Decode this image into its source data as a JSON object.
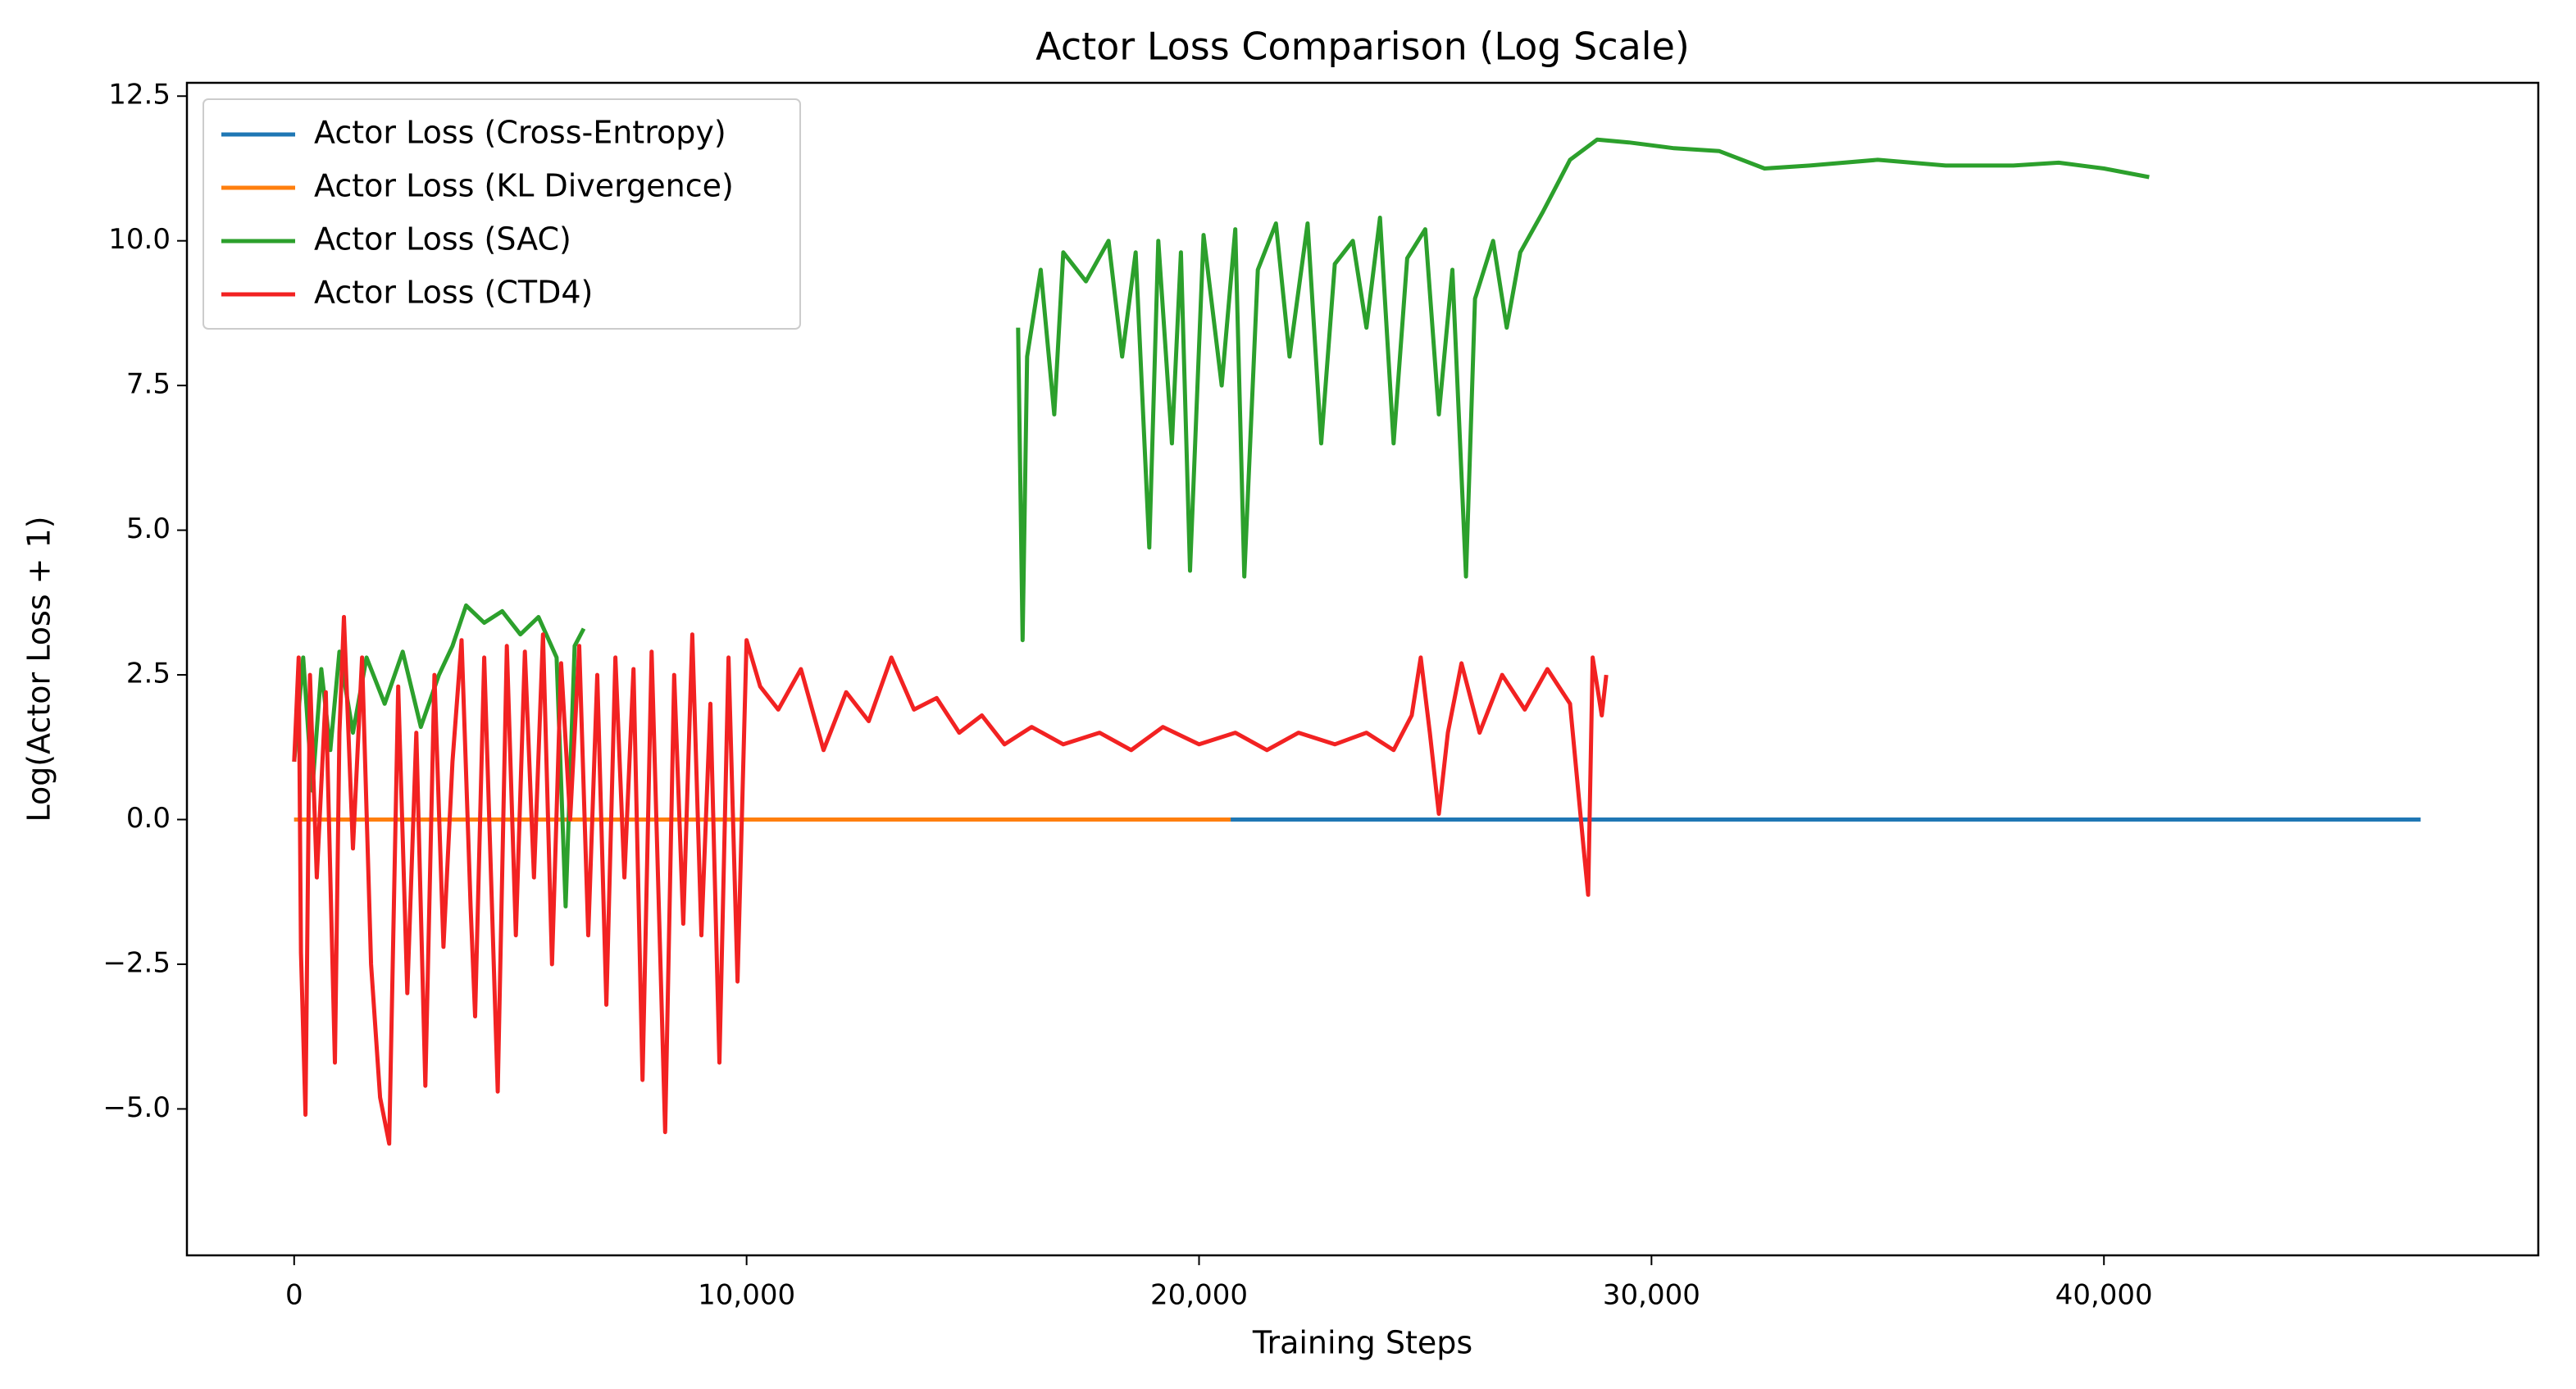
{
  "chart_data": {
    "type": "line",
    "title": "Actor Loss Comparison (Log Scale)",
    "x_label": "Training Steps",
    "y_label": "Log(Actor Loss + 1)",
    "xlim": [
      -2370,
      49600
    ],
    "ylim": [
      -7.53,
      12.73
    ],
    "xticks": [
      0,
      {
        "value": 10000,
        "label": "10,000"
      },
      {
        "value": 20000,
        "label": "20,000"
      },
      {
        "value": 30000,
        "label": "30,000"
      },
      {
        "value": 40000,
        "label": "40,000"
      }
    ],
    "yticks": [
      {
        "value": -5,
        "label": "−5.0"
      },
      {
        "value": -2.5,
        "label": "−2.5"
      },
      {
        "value": 0,
        "label": "0.0"
      },
      2.5,
      {
        "value": 5,
        "label": "5.0"
      },
      7.5,
      {
        "value": 10,
        "label": "10.0"
      },
      12.5
    ],
    "grid": false,
    "legend": "upper left",
    "series": [
      {
        "name": "Actor Loss (Cross-Entropy)",
        "color": "#1f77b4",
        "x": [
          0,
          47000
        ],
        "values": [
          0,
          0
        ]
      },
      {
        "name": "Actor Loss (KL Divergence)",
        "color": "#ff7f0e",
        "x": [
          0,
          20700
        ],
        "values": [
          0,
          0
        ]
      },
      {
        "name": "Actor Loss (SAC)",
        "color": "#2ca02c",
        "x": [
          0,
          200,
          400,
          600,
          800,
          1000,
          1300,
          1600,
          2000,
          2400,
          2800,
          3200,
          3500,
          3800,
          4200,
          4600,
          5000,
          5400,
          5800,
          6000,
          6200,
          6400,
          11000,
          16000,
          16100,
          16200,
          16500,
          16800,
          17000,
          17500,
          18000,
          18300,
          18600,
          18900,
          19100,
          19400,
          19600,
          19800,
          20100,
          20500,
          20800,
          21000,
          21300,
          21700,
          22000,
          22400,
          22700,
          23000,
          23400,
          23700,
          24000,
          24300,
          24600,
          25000,
          25300,
          25600,
          25900,
          26100,
          26500,
          26800,
          27100,
          27600,
          28200,
          28800,
          29500,
          30500,
          31500,
          32500,
          33500,
          35000,
          36500,
          38000,
          39000,
          40000,
          41000
        ],
        "values": [
          1.0,
          2.8,
          0.5,
          2.6,
          1.2,
          2.9,
          1.5,
          2.8,
          2.0,
          2.9,
          1.6,
          2.5,
          3.0,
          3.7,
          3.4,
          3.6,
          3.2,
          3.5,
          2.8,
          -1.5,
          3.0,
          3.3,
          null,
          8.5,
          3.1,
          8.0,
          9.5,
          7.0,
          9.8,
          9.3,
          10.0,
          8.0,
          9.8,
          4.7,
          10.0,
          6.5,
          9.8,
          4.3,
          10.1,
          7.5,
          10.2,
          4.2,
          9.5,
          10.3,
          8.0,
          10.3,
          6.5,
          9.6,
          10.0,
          8.5,
          10.4,
          6.5,
          9.7,
          10.2,
          7.0,
          9.5,
          4.2,
          9.0,
          10.0,
          8.5,
          9.8,
          10.5,
          11.4,
          11.75,
          11.7,
          11.6,
          11.55,
          11.25,
          11.3,
          11.4,
          11.3,
          11.3,
          11.35,
          11.25,
          11.1
        ]
      },
      {
        "name": "Actor Loss (CTD4)",
        "color": "#f22222",
        "x": [
          0,
          100,
          150,
          250,
          350,
          500,
          700,
          900,
          1000,
          1100,
          1300,
          1500,
          1700,
          1900,
          2100,
          2300,
          2500,
          2700,
          2900,
          3100,
          3300,
          3500,
          3700,
          3900,
          4000,
          4200,
          4500,
          4700,
          4900,
          5100,
          5300,
          5500,
          5700,
          5900,
          6100,
          6300,
          6500,
          6700,
          6900,
          7100,
          7300,
          7500,
          7700,
          7900,
          8100,
          8200,
          8400,
          8600,
          8800,
          9000,
          9200,
          9400,
          9600,
          9800,
          10000,
          10300,
          10700,
          11200,
          11700,
          12200,
          12700,
          13200,
          13700,
          14200,
          14700,
          15200,
          15700,
          16300,
          17000,
          17800,
          18500,
          19200,
          20000,
          20800,
          21500,
          22200,
          23000,
          23700,
          24300,
          24700,
          24900,
          25100,
          25300,
          25500,
          25800,
          26200,
          26700,
          27200,
          27700,
          28200,
          28500,
          28600,
          28700,
          28900,
          29000
        ],
        "values": [
          1.0,
          2.8,
          -2.3,
          -5.1,
          2.5,
          -1.0,
          2.2,
          -4.2,
          1.5,
          3.5,
          -0.5,
          2.8,
          -2.5,
          -4.8,
          -5.6,
          2.3,
          -3.0,
          1.5,
          -4.6,
          2.5,
          -2.2,
          1.0,
          3.1,
          -1.5,
          -3.4,
          2.8,
          -4.7,
          3.0,
          -2.0,
          2.9,
          -1.0,
          3.2,
          -2.5,
          2.7,
          0.0,
          3.0,
          -2.0,
          2.5,
          -3.2,
          2.8,
          -1.0,
          2.6,
          -4.5,
          2.9,
          -2.6,
          -5.4,
          2.5,
          -1.8,
          3.2,
          -2.0,
          2.0,
          -4.2,
          2.8,
          -2.8,
          3.1,
          2.3,
          1.9,
          2.6,
          1.2,
          2.2,
          1.7,
          2.8,
          1.9,
          2.1,
          1.5,
          1.8,
          1.3,
          1.6,
          1.3,
          1.5,
          1.2,
          1.6,
          1.3,
          1.5,
          1.2,
          1.5,
          1.3,
          1.5,
          1.2,
          1.8,
          2.8,
          1.5,
          0.1,
          1.5,
          2.7,
          1.5,
          2.5,
          1.9,
          2.6,
          2.0,
          -0.5,
          -1.3,
          2.8,
          1.8,
          2.5
        ]
      }
    ]
  }
}
